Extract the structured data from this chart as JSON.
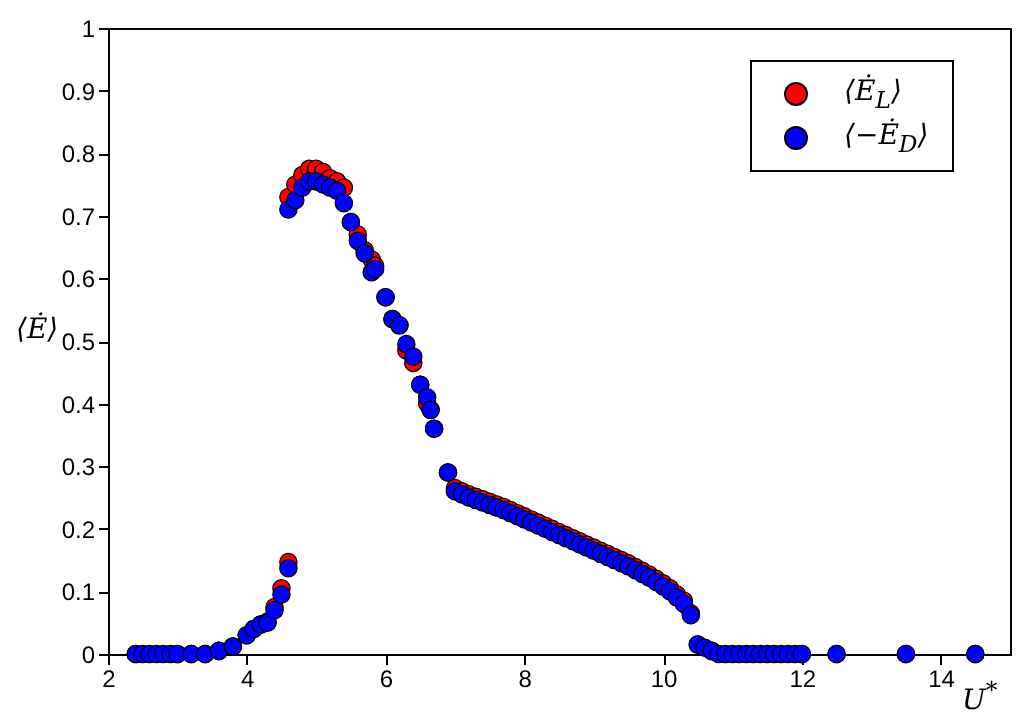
{
  "chart_data": {
    "type": "scatter",
    "xlabel": "U$^{*}$",
    "ylabel": "⟨Ė⟩",
    "x": [
      2.4,
      2.5,
      2.6,
      2.7,
      2.8,
      2.9,
      3.0,
      3.2,
      3.4,
      3.6,
      3.8,
      4.0,
      4.1,
      4.2,
      4.3,
      4.4,
      4.5,
      4.6,
      4.6,
      4.7,
      4.8,
      4.9,
      5.0,
      5.1,
      5.2,
      5.3,
      5.4,
      5.5,
      5.6,
      5.7,
      5.8,
      5.85,
      6.0,
      6.1,
      6.2,
      6.3,
      6.4,
      6.5,
      6.6,
      6.65,
      6.7,
      6.9,
      7.0,
      7.1,
      7.2,
      7.3,
      7.4,
      7.5,
      7.6,
      7.7,
      7.8,
      7.9,
      8.0,
      8.1,
      8.2,
      8.3,
      8.4,
      8.5,
      8.6,
      8.7,
      8.8,
      8.9,
      9.0,
      9.1,
      9.2,
      9.3,
      9.4,
      9.5,
      9.6,
      9.7,
      9.8,
      9.9,
      10.0,
      10.1,
      10.2,
      10.3,
      10.4,
      10.5,
      10.6,
      10.7,
      10.8,
      10.9,
      11.0,
      11.1,
      11.2,
      11.3,
      11.4,
      11.5,
      11.6,
      11.7,
      11.8,
      11.9,
      12.0,
      12.5,
      13.5,
      14.5
    ],
    "series": [
      {
        "name": "⟨Ė$_{L}$⟩",
        "color": "#ff0000",
        "values": [
          0,
          null,
          null,
          null,
          null,
          null,
          0,
          0,
          0,
          0.005,
          0.012,
          0.03,
          0.04,
          0.047,
          0.052,
          0.075,
          0.105,
          0.147,
          0.73,
          0.75,
          0.765,
          0.775,
          0.775,
          0.77,
          0.76,
          0.755,
          0.745,
          0.69,
          0.67,
          0.645,
          0.63,
          0.62,
          0.57,
          0.535,
          0.525,
          0.485,
          0.465,
          0.43,
          0.4,
          0.39,
          0.36,
          0.29,
          0.265,
          0.26,
          0.255,
          0.251,
          0.247,
          0.243,
          0.239,
          0.235,
          0.23,
          0.225,
          0.22,
          0.215,
          0.21,
          0.205,
          0.2,
          0.195,
          0.19,
          0.185,
          0.18,
          0.175,
          0.17,
          0.165,
          0.16,
          0.155,
          0.15,
          0.145,
          0.139,
          0.133,
          0.127,
          0.12,
          0.113,
          0.105,
          0.095,
          0.085,
          0.065,
          0.015,
          null,
          0.005,
          null,
          null,
          null,
          null,
          null,
          null,
          null,
          null,
          null,
          null,
          null,
          null,
          0,
          0,
          0,
          0
        ]
      },
      {
        "name": "⟨−Ė$_{D}$⟩",
        "color": "#0000ff",
        "values": [
          0,
          0,
          0,
          0,
          0,
          0,
          0,
          0,
          0,
          0.005,
          0.012,
          0.03,
          0.04,
          0.047,
          0.05,
          0.07,
          0.095,
          0.137,
          0.71,
          0.725,
          0.745,
          0.755,
          0.755,
          0.75,
          0.745,
          0.74,
          0.72,
          0.69,
          0.66,
          0.64,
          0.61,
          0.615,
          0.57,
          0.535,
          0.525,
          0.495,
          0.475,
          0.43,
          0.41,
          0.39,
          0.36,
          0.29,
          0.26,
          0.255,
          0.25,
          0.246,
          0.242,
          0.238,
          0.234,
          0.23,
          0.225,
          0.22,
          0.215,
          0.21,
          0.205,
          0.2,
          0.195,
          0.19,
          0.185,
          0.18,
          0.175,
          0.17,
          0.165,
          0.16,
          0.155,
          0.15,
          0.145,
          0.14,
          0.134,
          0.128,
          0.122,
          0.115,
          0.108,
          0.1,
          0.09,
          0.08,
          0.062,
          0.015,
          0.01,
          0.005,
          0,
          0,
          0,
          0,
          0,
          0,
          0,
          0,
          0,
          0,
          0,
          0,
          0,
          0,
          0,
          0
        ]
      }
    ],
    "xlim": [
      2,
      15
    ],
    "xticks": [
      2,
      4,
      6,
      8,
      10,
      12,
      14
    ],
    "ylim": [
      0,
      1
    ],
    "yticks": [
      0,
      0.1,
      0.2,
      0.3,
      0.4,
      0.5,
      0.6,
      0.7,
      0.8,
      0.9,
      1
    ],
    "grid": false,
    "legend": "top right",
    "marker": "circle"
  }
}
